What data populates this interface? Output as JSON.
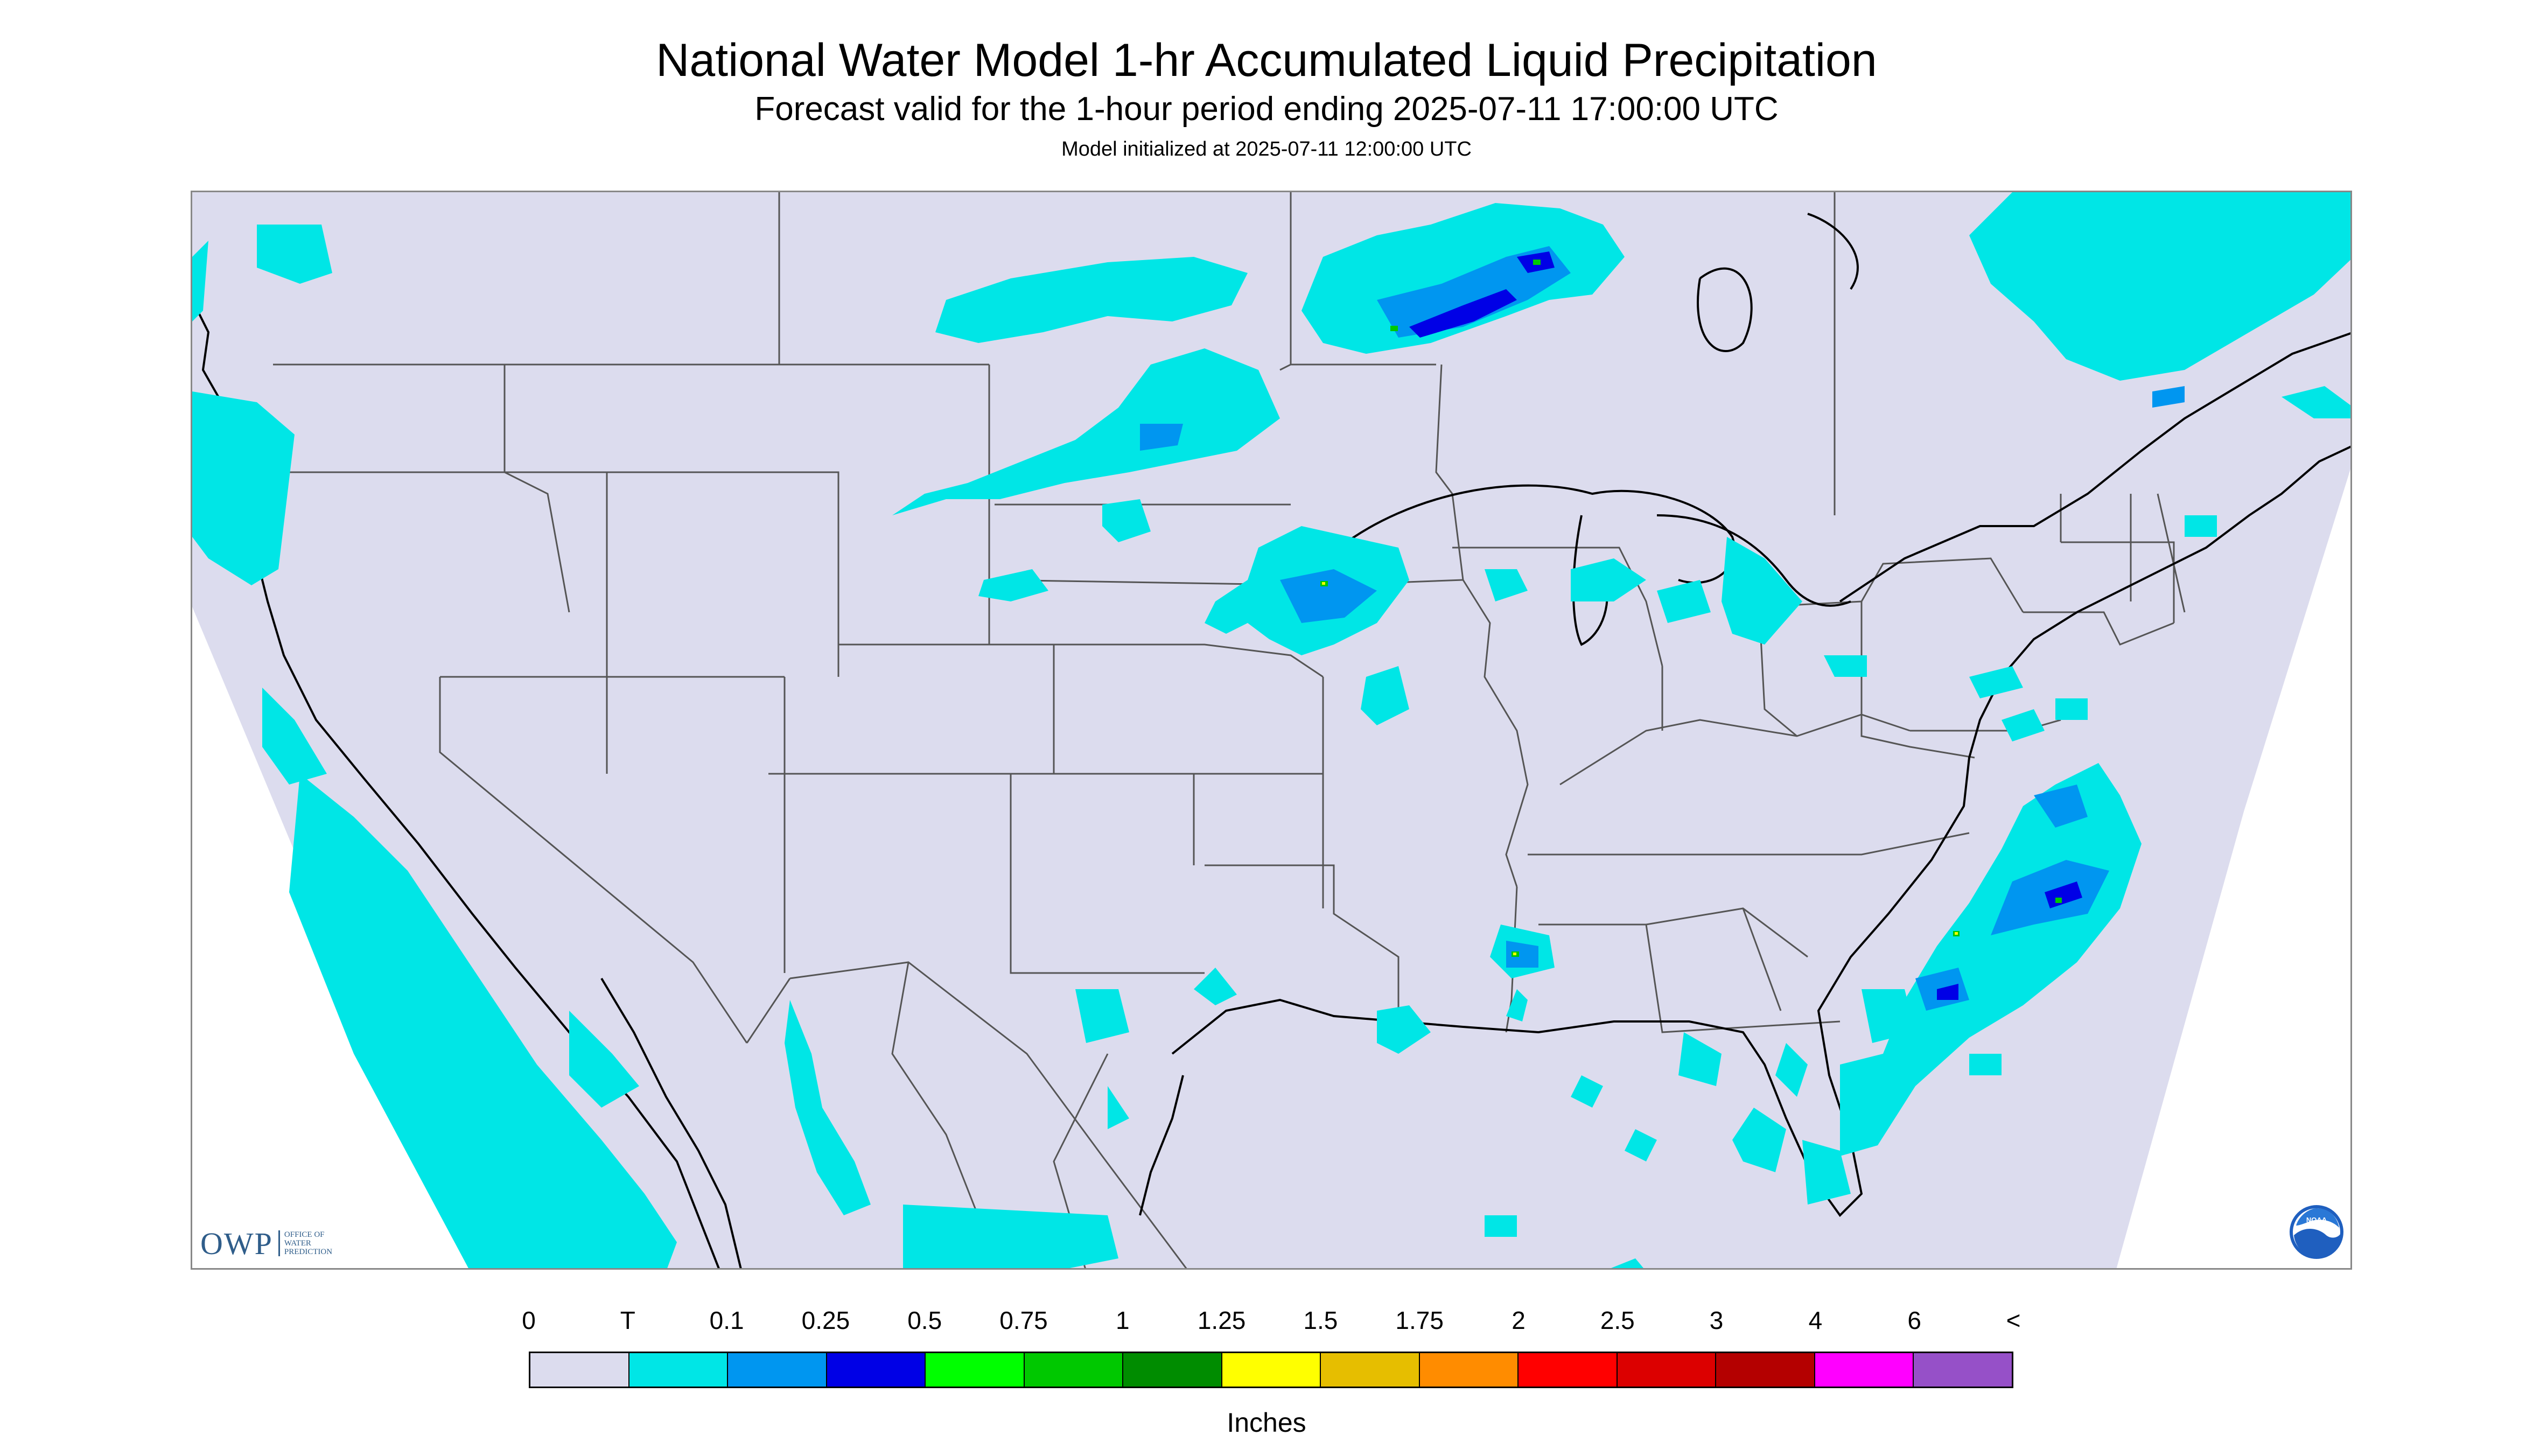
{
  "header": {
    "title": "National Water Model 1-hr Accumulated Liquid Precipitation",
    "subtitle": "Forecast valid for the 1-hour period ending 2025-07-11 17:00:00 UTC",
    "init": "Model initialized at 2025-07-11 12:00:00 UTC"
  },
  "branding": {
    "owp_short": "OWP",
    "owp_long_1": "OFFICE OF",
    "owp_long_2": "WATER",
    "owp_long_3": "PREDICTION",
    "noaa_text": "NOAA",
    "noaa_icon": "noaa-logo-icon"
  },
  "legend": {
    "labels": [
      "0",
      "T",
      "0.1",
      "0.25",
      "0.5",
      "0.75",
      "1",
      "1.25",
      "1.5",
      "1.75",
      "2",
      "2.5",
      "3",
      "4",
      "6",
      "<"
    ],
    "colors": [
      "#dcdcee",
      "#00e6e6",
      "#0096f0",
      "#0000e6",
      "#00ff00",
      "#00c800",
      "#008c00",
      "#ffff00",
      "#e6be00",
      "#ff8c00",
      "#ff0000",
      "#dc0000",
      "#b40000",
      "#ff00ff",
      "#9650c8"
    ],
    "units": "Inches"
  },
  "map": {
    "background": "#ffffff",
    "domain_fill": "#dcdcee",
    "boundary_color": "#555555",
    "coast_color": "#000000"
  }
}
